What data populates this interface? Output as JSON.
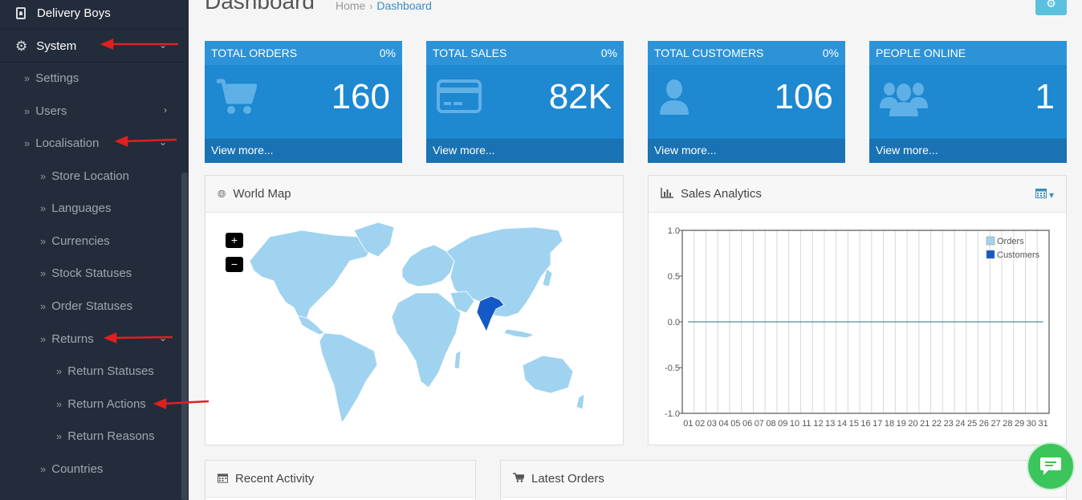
{
  "sidebar": {
    "items": [
      {
        "label": "Delivery Boys",
        "icon": "badge-icon"
      },
      {
        "label": "System",
        "icon": "gear-icon"
      },
      {
        "label": "Settings"
      },
      {
        "label": "Users"
      },
      {
        "label": "Localisation"
      },
      {
        "label": "Store Location"
      },
      {
        "label": "Languages"
      },
      {
        "label": "Currencies"
      },
      {
        "label": "Stock Statuses"
      },
      {
        "label": "Order Statuses"
      },
      {
        "label": "Returns"
      },
      {
        "label": "Return Statuses"
      },
      {
        "label": "Return Actions"
      },
      {
        "label": "Return Reasons"
      },
      {
        "label": "Countries"
      }
    ]
  },
  "header": {
    "title": "Dashboard",
    "breadcrumb": [
      "Home",
      "Dashboard"
    ]
  },
  "tiles": [
    {
      "title": "TOTAL ORDERS",
      "percent": "0%",
      "value": "160",
      "footer": "View more...",
      "icon": "cart-icon"
    },
    {
      "title": "TOTAL SALES",
      "percent": "0%",
      "value": "82K",
      "footer": "View more...",
      "icon": "credit-card-icon"
    },
    {
      "title": "TOTAL CUSTOMERS",
      "percent": "0%",
      "value": "106",
      "footer": "View more...",
      "icon": "user-icon"
    },
    {
      "title": "PEOPLE ONLINE",
      "percent": "",
      "value": "1",
      "footer": "View more...",
      "icon": "users-icon"
    }
  ],
  "panels": {
    "world_map": {
      "title": "World Map",
      "zoom_in": "+",
      "zoom_out": "−"
    },
    "sales_analytics": {
      "title": "Sales Analytics"
    },
    "recent_activity": {
      "title": "Recent Activity"
    },
    "latest_orders": {
      "title": "Latest Orders"
    }
  },
  "colors": {
    "sidebar": "#232c3b",
    "tile": "#1e88d0",
    "tile_header": "#2d93d9",
    "tile_footer": "#1972b3",
    "map_land": "#a0d3f0",
    "map_highlight": "#1459c5",
    "annotation_arrow": "#e02020",
    "chat": "#3cc55a"
  },
  "chart_data": {
    "type": "line",
    "x": [
      "01",
      "02",
      "03",
      "04",
      "05",
      "06",
      "07",
      "08",
      "09",
      "10",
      "11",
      "12",
      "13",
      "14",
      "15",
      "16",
      "17",
      "18",
      "19",
      "20",
      "21",
      "22",
      "23",
      "24",
      "25",
      "26",
      "27",
      "28",
      "29",
      "30",
      "31"
    ],
    "series": [
      {
        "name": "Orders",
        "values": [
          0,
          0,
          0,
          0,
          0,
          0,
          0,
          0,
          0,
          0,
          0,
          0,
          0,
          0,
          0,
          0,
          0,
          0,
          0,
          0,
          0,
          0,
          0,
          0,
          0,
          0,
          0,
          0,
          0,
          0,
          0
        ],
        "color": "#a0d3f0"
      },
      {
        "name": "Customers",
        "values": [
          0,
          0,
          0,
          0,
          0,
          0,
          0,
          0,
          0,
          0,
          0,
          0,
          0,
          0,
          0,
          0,
          0,
          0,
          0,
          0,
          0,
          0,
          0,
          0,
          0,
          0,
          0,
          0,
          0,
          0,
          0
        ],
        "color": "#1459c5"
      }
    ],
    "yticks": [
      "1.0",
      "0.5",
      "0.0",
      "-0.5",
      "-1.0"
    ],
    "ylim": [
      -1,
      1
    ],
    "grid": true,
    "legend": "top-right"
  }
}
